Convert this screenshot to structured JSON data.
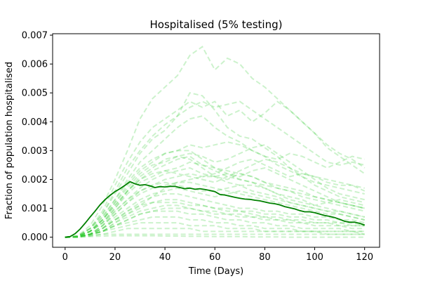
{
  "chart_data": {
    "type": "line",
    "title": "Hospitalised (5% testing)",
    "xlabel": "Time (Days)",
    "ylabel": "Fraction of population hospitalised",
    "xlim": [
      -5,
      126
    ],
    "ylim": [
      -0.00035,
      0.00705
    ],
    "xticks": [
      0,
      20,
      40,
      60,
      80,
      100,
      120
    ],
    "xtick_labels": [
      "0",
      "20",
      "40",
      "60",
      "80",
      "100",
      "120"
    ],
    "yticks": [
      0,
      0.001,
      0.002,
      0.003,
      0.004,
      0.005,
      0.006,
      0.007
    ],
    "ytick_labels": [
      "0.000",
      "0.001",
      "0.002",
      "0.003",
      "0.004",
      "0.005",
      "0.006",
      "0.007"
    ],
    "grid": false,
    "mean_series": {
      "color": "#008000",
      "style": "solid",
      "x": [
        0,
        2,
        4,
        6,
        8,
        10,
        12,
        14,
        16,
        18,
        20,
        22,
        24,
        26,
        28,
        30,
        32,
        34,
        36,
        38,
        40,
        42,
        44,
        46,
        48,
        50,
        52,
        54,
        56,
        58,
        60,
        62,
        64,
        66,
        68,
        70,
        72,
        74,
        76,
        78,
        80,
        82,
        84,
        86,
        88,
        90,
        92,
        94,
        96,
        98,
        100,
        102,
        104,
        106,
        108,
        110,
        112,
        114,
        116,
        118,
        120
      ],
      "y": [
        0.0,
        2e-05,
        0.00012,
        0.00028,
        0.00048,
        0.0007,
        0.0009,
        0.00112,
        0.0013,
        0.00145,
        0.00158,
        0.00168,
        0.0018,
        0.00192,
        0.00185,
        0.0018,
        0.00182,
        0.00178,
        0.00172,
        0.00175,
        0.00174,
        0.00176,
        0.00176,
        0.00172,
        0.00168,
        0.0017,
        0.00166,
        0.00168,
        0.00165,
        0.00162,
        0.00158,
        0.00148,
        0.00146,
        0.00142,
        0.00138,
        0.00135,
        0.00132,
        0.00131,
        0.00128,
        0.00126,
        0.00122,
        0.00118,
        0.00116,
        0.00112,
        0.00106,
        0.00102,
        0.00098,
        0.00092,
        0.00088,
        0.00088,
        0.00085,
        0.0008,
        0.00075,
        0.00072,
        0.00068,
        0.00062,
        0.00055,
        0.00052,
        0.00052,
        0.00048,
        0.00042
      ]
    },
    "run_series_style": {
      "color": "#33cc33",
      "style": "dashed",
      "opacity": 0.25
    },
    "run_series": [
      [
        0,
        5e-05,
        0.0004,
        0.0011,
        0.002,
        0.003,
        0.0041,
        0.0048,
        0.0052,
        0.0056,
        0.0063,
        0.0066,
        0.0058,
        0.0062,
        0.006,
        0.0055,
        0.0052,
        0.0048,
        0.0044,
        0.004,
        0.0036,
        0.0032,
        0.0029,
        0.0027,
        0.0024
      ],
      [
        0,
        4e-05,
        0.0003,
        0.0009,
        0.0018,
        0.0026,
        0.0033,
        0.0038,
        0.0041,
        0.0044,
        0.0047,
        0.0045,
        0.0047,
        0.0042,
        0.0044,
        0.004,
        0.0043,
        0.0047,
        0.0044,
        0.004,
        0.0036,
        0.0031,
        0.0028,
        0.0025,
        0.0022
      ],
      [
        0,
        3e-05,
        0.0003,
        0.0008,
        0.0016,
        0.0024,
        0.003,
        0.0035,
        0.0039,
        0.0042,
        0.0045,
        0.0047,
        0.0045,
        0.0046,
        0.0047,
        0.0044,
        0.0041,
        0.0038,
        0.0035,
        0.0032,
        0.0029,
        0.0026,
        0.0025,
        0.0026,
        0.0025
      ],
      [
        0,
        3e-05,
        0.0003,
        0.0008,
        0.0015,
        0.0022,
        0.0029,
        0.0034,
        0.0037,
        0.0042,
        0.005,
        0.0049,
        0.0044,
        0.0038,
        0.0035,
        0.0034,
        0.0031,
        0.0028,
        0.0024,
        0.0021,
        0.0018,
        0.0016,
        0.0014,
        0.0013,
        0.0012
      ],
      [
        0,
        2e-05,
        0.0002,
        0.0007,
        0.0013,
        0.002,
        0.0026,
        0.003,
        0.0034,
        0.0038,
        0.0041,
        0.0042,
        0.0038,
        0.0035,
        0.0033,
        0.003,
        0.0028,
        0.0025,
        0.0023,
        0.0021,
        0.0019,
        0.0018,
        0.0017,
        0.0016,
        0.0015
      ],
      [
        0,
        2e-05,
        0.0002,
        0.0006,
        0.0012,
        0.0018,
        0.0023,
        0.0026,
        0.0029,
        0.003,
        0.0032,
        0.0031,
        0.0032,
        0.0033,
        0.0032,
        0.003,
        0.0028,
        0.0027,
        0.0029,
        0.0028,
        0.0026,
        0.0024,
        0.0026,
        0.0028,
        0.0027
      ],
      [
        0,
        2e-05,
        0.0002,
        0.0006,
        0.0012,
        0.0017,
        0.0022,
        0.0025,
        0.0026,
        0.0028,
        0.0029,
        0.0028,
        0.0026,
        0.0027,
        0.0029,
        0.0031,
        0.0032,
        0.0029,
        0.0026,
        0.0023,
        0.002,
        0.0017,
        0.0015,
        0.0014,
        0.0013
      ],
      [
        0,
        2e-05,
        0.0002,
        0.0005,
        0.001,
        0.0016,
        0.002,
        0.0023,
        0.0025,
        0.0027,
        0.0028,
        0.0025,
        0.0024,
        0.0023,
        0.0022,
        0.0021,
        0.0019,
        0.0017,
        0.0016,
        0.0014,
        0.0013,
        0.0012,
        0.0011,
        0.001,
        0.0009
      ],
      [
        0,
        2e-05,
        0.0002,
        0.0005,
        0.001,
        0.0015,
        0.0019,
        0.0021,
        0.0023,
        0.0024,
        0.0026,
        0.0025,
        0.0023,
        0.0021,
        0.002,
        0.0019,
        0.0018,
        0.0017,
        0.0016,
        0.0015,
        0.0014,
        0.0013,
        0.0012,
        0.0011,
        0.001
      ],
      [
        0,
        1e-05,
        0.0001,
        0.0004,
        0.0009,
        0.0013,
        0.0017,
        0.002,
        0.0022,
        0.0023,
        0.0024,
        0.0022,
        0.0021,
        0.002,
        0.0022,
        0.0021,
        0.0019,
        0.0018,
        0.0017,
        0.0016,
        0.0014,
        0.0013,
        0.0012,
        0.0011,
        0.001
      ],
      [
        0,
        1e-05,
        0.0001,
        0.0004,
        0.0008,
        0.0012,
        0.0016,
        0.0018,
        0.002,
        0.0021,
        0.0022,
        0.0021,
        0.0021,
        0.0022,
        0.002,
        0.0019,
        0.0017,
        0.0015,
        0.0014,
        0.0013,
        0.0011,
        0.001,
        0.0009,
        0.0008,
        0.0007
      ],
      [
        0,
        1e-05,
        0.0001,
        0.0004,
        0.0008,
        0.0012,
        0.0015,
        0.0017,
        0.0018,
        0.0019,
        0.0019,
        0.0018,
        0.0017,
        0.0016,
        0.0015,
        0.0014,
        0.0013,
        0.0012,
        0.0011,
        0.001,
        0.0009,
        0.0008,
        0.0008,
        0.0007,
        0.0006
      ],
      [
        0,
        1e-05,
        0.0001,
        0.0003,
        0.0007,
        0.001,
        0.0013,
        0.0015,
        0.0016,
        0.0017,
        0.0016,
        0.0015,
        0.0014,
        0.0015,
        0.0016,
        0.0015,
        0.0014,
        0.0013,
        0.0012,
        0.0011,
        0.001,
        0.0009,
        0.0009,
        0.0008,
        0.0007
      ],
      [
        0,
        1e-05,
        0.0001,
        0.0003,
        0.0006,
        0.0009,
        0.0012,
        0.0014,
        0.0015,
        0.0015,
        0.0014,
        0.0013,
        0.0012,
        0.0011,
        0.001,
        0.001,
        0.0009,
        0.0009,
        0.0008,
        0.0008,
        0.0007,
        0.0007,
        0.0006,
        0.0006,
        0.0005
      ],
      [
        0,
        1e-05,
        0.0001,
        0.0003,
        0.0006,
        0.0008,
        0.001,
        0.0012,
        0.0013,
        0.0013,
        0.0012,
        0.0011,
        0.001,
        0.0009,
        0.0009,
        0.0008,
        0.0007,
        0.0007,
        0.0006,
        0.0006,
        0.0005,
        0.0005,
        0.0005,
        0.0004,
        0.0004
      ],
      [
        0,
        1e-05,
        0.0001,
        0.0002,
        0.0005,
        0.0007,
        0.0009,
        0.001,
        0.0011,
        0.0011,
        0.001,
        0.0009,
        0.0009,
        0.0008,
        0.0007,
        0.0007,
        0.0006,
        0.0006,
        0.0005,
        0.0005,
        0.0004,
        0.0004,
        0.0004,
        0.0003,
        0.0003
      ],
      [
        0,
        1e-05,
        0.0001,
        0.0002,
        0.0004,
        0.0006,
        0.0008,
        0.0009,
        0.0009,
        0.0009,
        0.0008,
        0.0008,
        0.0007,
        0.0006,
        0.0006,
        0.0005,
        0.0005,
        0.0004,
        0.0004,
        0.0003,
        0.0003,
        0.0003,
        0.0003,
        0.0002,
        0.0002
      ],
      [
        0,
        1e-05,
        0.0001,
        0.0002,
        0.0004,
        0.0005,
        0.0006,
        0.0007,
        0.0007,
        0.0007,
        0.0006,
        0.0006,
        0.0005,
        0.0005,
        0.0004,
        0.0004,
        0.0003,
        0.0003,
        0.0003,
        0.0002,
        0.0002,
        0.0002,
        0.0002,
        0.0002,
        0.0001
      ],
      [
        0,
        1e-05,
        5e-05,
        0.0002,
        0.0003,
        0.0004,
        0.0005,
        0.0005,
        0.0005,
        0.0005,
        0.0004,
        0.0004,
        0.0004,
        0.0003,
        0.0003,
        0.0003,
        0.0002,
        0.0002,
        0.0002,
        0.0002,
        0.0002,
        0.0001,
        0.0001,
        0.0001,
        0.0001
      ],
      [
        0,
        1e-05,
        5e-05,
        0.0001,
        0.0002,
        0.0003,
        0.0003,
        0.0003,
        0.0003,
        0.0003,
        0.0003,
        0.0002,
        0.0002,
        0.0002,
        0.0002,
        0.0002,
        0.0002,
        0.0002,
        0.0002,
        0.0002,
        0.0002,
        0.0002,
        0.0002,
        0.0002,
        0.0002
      ],
      [
        0,
        1e-05,
        0.0001,
        0.0002,
        0.0005,
        0.0008,
        0.0011,
        0.0014,
        0.0017,
        0.0019,
        0.002,
        0.0021,
        0.0022,
        0.0024,
        0.0026,
        0.0027,
        0.0025,
        0.0023,
        0.0021,
        0.0022,
        0.0021,
        0.0019,
        0.0018,
        0.0018,
        0.0017
      ],
      [
        0,
        2e-05,
        0.0002,
        0.0005,
        0.0009,
        0.0013,
        0.0016,
        0.0018,
        0.0019,
        0.0018,
        0.0017,
        0.0016,
        0.0016,
        0.0017,
        0.0018,
        0.0018,
        0.0017,
        0.0015,
        0.0013,
        0.0012,
        0.0011,
        0.0012,
        0.0013,
        0.0012,
        0.0011
      ],
      [
        0,
        2e-05,
        0.0002,
        0.0006,
        0.0011,
        0.0016,
        0.0021,
        0.0024,
        0.0027,
        0.0028,
        0.0027,
        0.0024,
        0.0021,
        0.0019,
        0.0018,
        0.0016,
        0.0015,
        0.0014,
        0.0012,
        0.0011,
        0.001,
        0.0009,
        0.0008,
        0.0007,
        0.0006
      ],
      [
        0,
        3e-05,
        0.0003,
        0.0007,
        0.0013,
        0.0019,
        0.0024,
        0.0027,
        0.0029,
        0.003,
        0.003,
        0.0027,
        0.0024,
        0.0022,
        0.0021,
        0.0023,
        0.0024,
        0.0022,
        0.002,
        0.0018,
        0.0016,
        0.0014,
        0.0012,
        0.0011,
        0.001
      ],
      [
        0,
        1e-05,
        0.0001,
        0.0003,
        0.0006,
        0.0009,
        0.0011,
        0.0012,
        0.0012,
        0.0012,
        0.0011,
        0.0011,
        0.001,
        0.001,
        0.0009,
        0.0009,
        0.0008,
        0.0008,
        0.0007,
        0.0007,
        0.0006,
        0.0006,
        0.0005,
        0.0005,
        0.0004
      ],
      [
        0,
        1e-05,
        0.0001,
        0.0002,
        0.0004,
        0.0006,
        0.0008,
        0.0009,
        0.001,
        0.001,
        0.001,
        0.0009,
        0.0008,
        0.0008,
        0.0008,
        0.0007,
        0.0007,
        0.0006,
        0.0006,
        0.0005,
        0.0005,
        0.0005,
        0.0004,
        0.0004,
        0.0004
      ],
      [
        0,
        2e-05,
        0.0002,
        0.0006,
        0.0011,
        0.0016,
        0.002,
        0.0022,
        0.0023,
        0.0022,
        0.0021,
        0.002,
        0.0019,
        0.0021,
        0.0023,
        0.0025,
        0.0027,
        0.0026,
        0.0024,
        0.0022,
        0.0021,
        0.002,
        0.0019,
        0.0018,
        0.0016
      ],
      [
        0,
        1e-05,
        5e-05,
        0.0001,
        0.0001,
        0.0001,
        0.0001,
        0.0001,
        0.0001,
        0.0001,
        0.0001,
        0.0001,
        0.0001,
        0.0001,
        0.0001,
        0.0001,
        0.0001,
        0.0001,
        0.0001,
        0.0001,
        0.0001,
        0.0001,
        0.0001,
        0.0001,
        0.0001
      ],
      [
        0,
        0,
        2e-05,
        4e-05,
        5e-05,
        5e-05,
        5e-05,
        5e-05,
        4e-05,
        4e-05,
        3e-05,
        3e-05,
        2e-05,
        2e-05,
        2e-05,
        1e-05,
        1e-05,
        1e-05,
        0,
        0,
        0,
        0,
        0,
        0,
        0
      ]
    ]
  }
}
